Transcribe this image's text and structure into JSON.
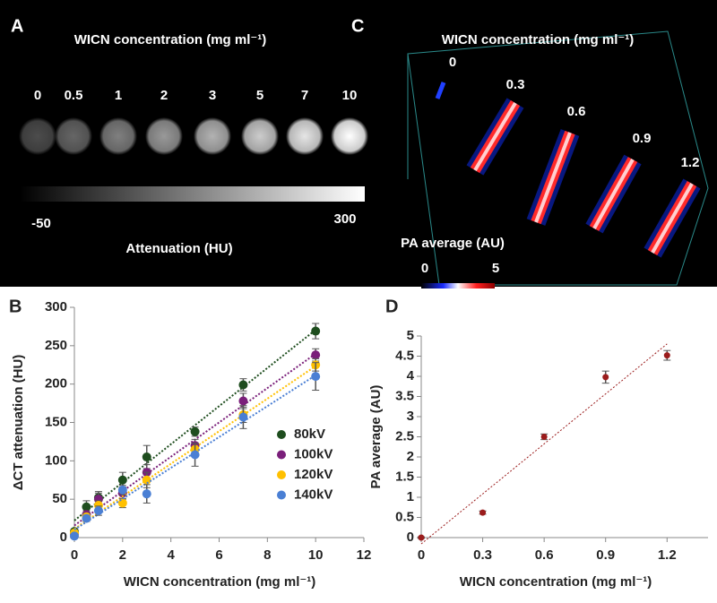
{
  "panel_a": {
    "panel_label": "A",
    "title": "WICN concentration (mg ml⁻¹)",
    "concentrations": [
      0,
      0.5,
      1,
      2,
      3,
      5,
      7,
      10
    ],
    "colorbar_min": -50,
    "colorbar_max": 300,
    "colorbar_label": "Attenuation (HU)"
  },
  "panel_c": {
    "panel_label": "C",
    "title": "WICN concentration (mg ml⁻¹)",
    "concentrations": [
      0,
      0.3,
      0.6,
      0.9,
      1.2
    ],
    "colorbar_label": "PA average (AU)",
    "colorbar_min": 0,
    "colorbar_max": 5
  },
  "chart_data": [
    {
      "type": "scatter",
      "panel_label": "B",
      "x_label": "WICN concentration (mg ml⁻¹)",
      "y_label": "ΔCT attenuation (HU)",
      "x": [
        0,
        0.5,
        1,
        2,
        3,
        5,
        7,
        10
      ],
      "series": [
        {
          "name": "80kV",
          "color": "#1e4d1e",
          "values": [
            8,
            40,
            52,
            75,
            105,
            138,
            199,
            269
          ],
          "errors": [
            3,
            8,
            8,
            10,
            15,
            6,
            8,
            10
          ]
        },
        {
          "name": "100kV",
          "color": "#7a1f7a",
          "values": [
            5,
            30,
            50,
            58,
            85,
            120,
            178,
            238
          ],
          "errors": [
            5,
            5,
            8,
            8,
            10,
            8,
            10,
            8
          ]
        },
        {
          "name": "120kV",
          "color": "#ffc000",
          "values": [
            6,
            27,
            42,
            45,
            75,
            115,
            160,
            225
          ],
          "errors": [
            4,
            5,
            6,
            6,
            10,
            8,
            10,
            8
          ]
        },
        {
          "name": "140kV",
          "color": "#4a7fd4",
          "values": [
            2,
            25,
            35,
            62,
            57,
            108,
            157,
            210
          ],
          "errors": [
            3,
            4,
            6,
            6,
            12,
            15,
            15,
            18
          ]
        }
      ],
      "xlim": [
        0,
        12
      ],
      "xticks": [
        0,
        2,
        4,
        6,
        8,
        10,
        12
      ],
      "ylim": [
        0,
        300
      ],
      "yticks": [
        0,
        50,
        100,
        150,
        200,
        250,
        300
      ],
      "trendline": true,
      "legend": "lower right"
    },
    {
      "type": "scatter",
      "panel_label": "D",
      "x_label": "WICN concentration (mg ml⁻¹)",
      "y_label": "PA average (AU)",
      "x": [
        0,
        0.3,
        0.6,
        0.9,
        1.2
      ],
      "series": [
        {
          "color": "#9b1c1c",
          "values": [
            0,
            0.62,
            2.5,
            3.98,
            4.52
          ],
          "errors": [
            0.02,
            0.04,
            0.07,
            0.15,
            0.12
          ]
        }
      ],
      "xlim": [
        0,
        1.4
      ],
      "xticks": [
        0,
        0.3,
        0.6,
        0.9,
        1.2
      ],
      "ylim": [
        0,
        5
      ],
      "yticks": [
        0,
        0.5,
        1,
        1.5,
        2,
        2.5,
        3,
        3.5,
        4,
        4.5,
        5
      ],
      "trendline": true
    }
  ]
}
